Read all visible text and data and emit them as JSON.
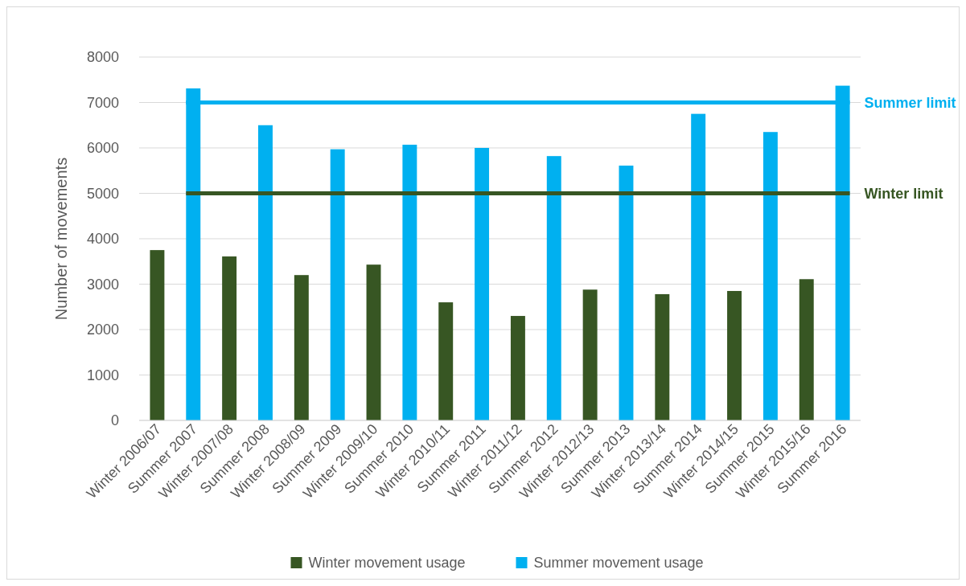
{
  "chart_data": {
    "type": "bar",
    "ylabel": "Number of movements",
    "categories": [
      "Winter 2006/07",
      "Summer 2007",
      "Winter 2007/08",
      "Summer 2008",
      "Winter 2008/09",
      "Summer 2009",
      "Winter 2009/10",
      "Summer 2010",
      "Winter 2010/11",
      "Summer 2011",
      "Winter 2011/12",
      "Summer 2012",
      "Winter 2012/13",
      "Summer 2013",
      "Winter 2013/14",
      "Summer 2014",
      "Winter 2014/15",
      "Summer 2015",
      "Winter 2015/16",
      "Summer 2016"
    ],
    "series": [
      {
        "name": "Winter movement usage",
        "color": "#375623",
        "values": [
          3750,
          null,
          3610,
          null,
          3200,
          null,
          3430,
          null,
          2600,
          null,
          2300,
          null,
          2880,
          null,
          2780,
          null,
          2850,
          null,
          3110,
          null
        ]
      },
      {
        "name": "Summer movement usage",
        "color": "#00b0f0",
        "values": [
          null,
          7310,
          null,
          6500,
          null,
          5970,
          null,
          6070,
          null,
          6000,
          null,
          5820,
          null,
          5610,
          null,
          6750,
          null,
          6350,
          null,
          7370
        ]
      }
    ],
    "ylim": [
      0,
      8000
    ],
    "yticks": [
      0,
      1000,
      2000,
      3000,
      4000,
      5000,
      6000,
      7000,
      8000
    ],
    "grid": "y",
    "legend": "bottom",
    "ref_lines": [
      {
        "axis": "y",
        "value": 7000,
        "label": "Summer limit",
        "color": "#00b0f0"
      },
      {
        "axis": "y",
        "value": 5000,
        "label": "Winter limit",
        "color": "#375623"
      }
    ]
  }
}
